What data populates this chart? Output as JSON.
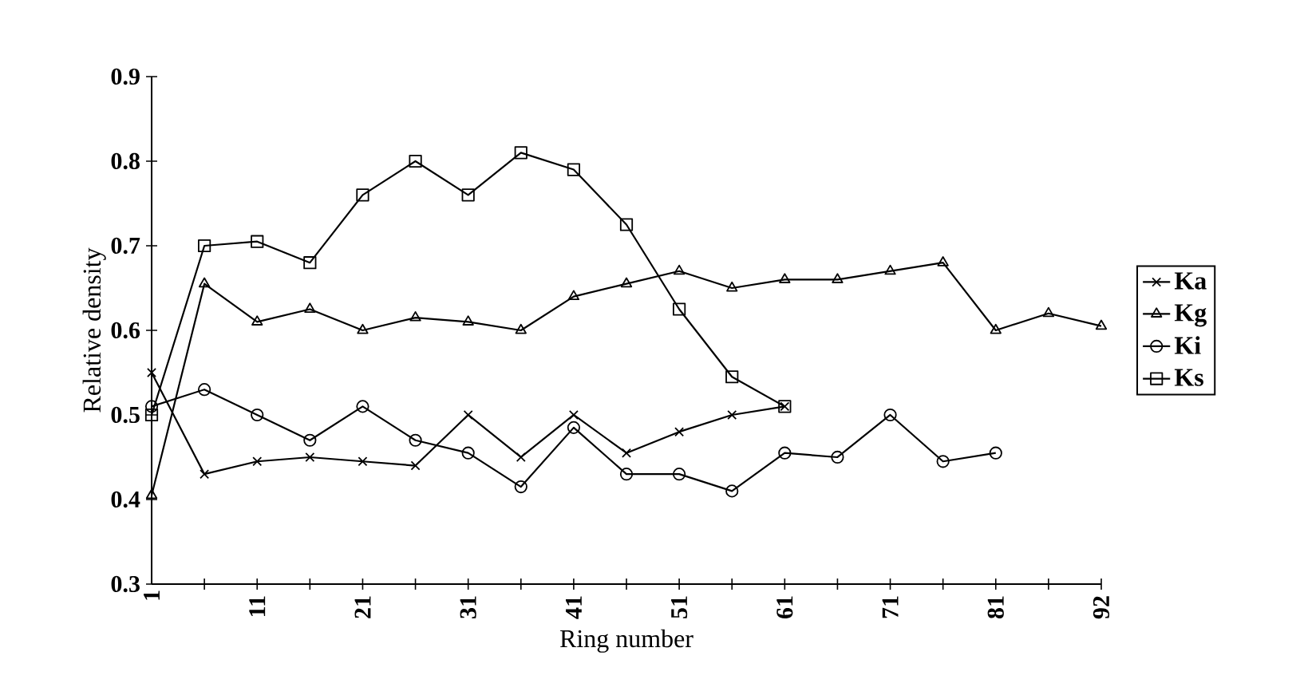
{
  "chart_data": {
    "type": "line",
    "xlabel": "Ring number",
    "ylabel": "Relative density",
    "categories": [
      "1",
      null,
      "11",
      null,
      "21",
      null,
      "31",
      null,
      "41",
      null,
      "51",
      null,
      "61",
      null,
      "71",
      null,
      "81",
      null,
      "92"
    ],
    "ylim": [
      0.3,
      0.9
    ],
    "yticks": [
      0.3,
      0.4,
      0.5,
      0.6,
      0.7,
      0.8,
      0.9
    ],
    "legend": "right",
    "grid": false,
    "line_style": "solid",
    "series": [
      {
        "name": "Ka",
        "color": "#000000",
        "marker": "cross",
        "values": [
          0.55,
          0.43,
          0.445,
          0.45,
          0.445,
          0.44,
          0.5,
          0.45,
          0.5,
          0.455,
          0.48,
          0.5,
          0.51,
          null,
          null,
          null,
          null,
          null,
          null
        ]
      },
      {
        "name": "Kg",
        "color": "#000000",
        "marker": "triangle",
        "values": [
          0.405,
          0.655,
          0.61,
          0.625,
          0.6,
          0.615,
          0.61,
          0.6,
          0.64,
          0.655,
          0.67,
          0.65,
          0.66,
          0.66,
          0.67,
          0.68,
          0.6,
          0.62,
          0.605
        ]
      },
      {
        "name": "Ki",
        "color": "#000000",
        "marker": "circle",
        "values": [
          0.51,
          0.53,
          0.5,
          0.47,
          0.51,
          0.47,
          0.455,
          0.415,
          0.485,
          0.43,
          0.43,
          0.41,
          0.455,
          0.45,
          0.5,
          0.445,
          0.455,
          null,
          null
        ]
      },
      {
        "name": "Ks",
        "color": "#000000",
        "marker": "square",
        "values": [
          0.5,
          0.7,
          0.705,
          0.68,
          0.76,
          0.8,
          0.76,
          0.81,
          0.79,
          0.725,
          0.625,
          0.545,
          0.51,
          null,
          null,
          null,
          null,
          null,
          null
        ]
      }
    ]
  }
}
